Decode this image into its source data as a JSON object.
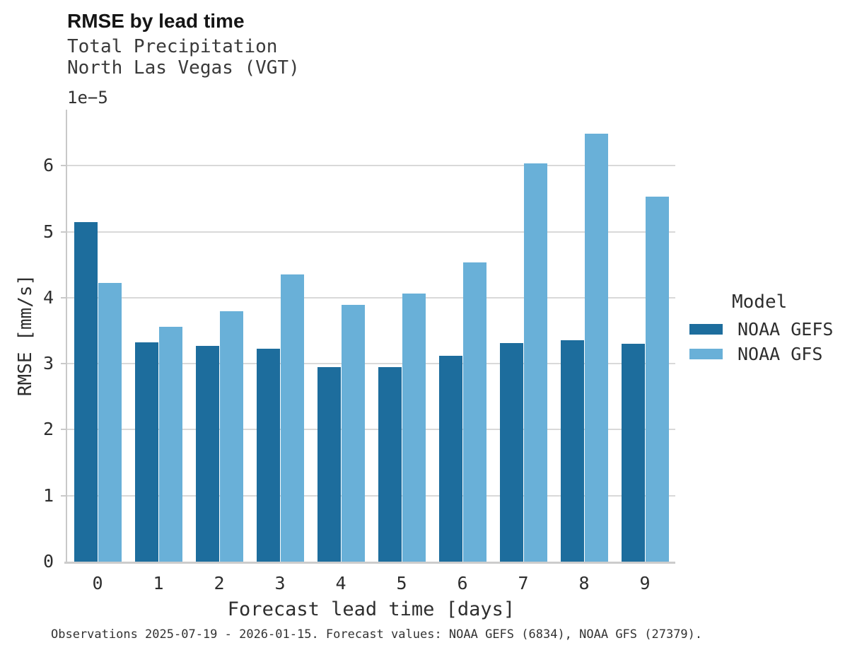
{
  "header": {
    "title": "RMSE by lead time",
    "subtitle_line1": "Total Precipitation",
    "subtitle_line2": "North Las Vegas (VGT)"
  },
  "chart_data": {
    "type": "bar",
    "title": "RMSE by lead time",
    "subtitle": [
      "Total Precipitation",
      "North Las Vegas (VGT)"
    ],
    "categories": [
      "0",
      "1",
      "2",
      "3",
      "4",
      "5",
      "6",
      "7",
      "8",
      "9"
    ],
    "series": [
      {
        "name": "NOAA GEFS",
        "color": "#1d6d9d",
        "values": [
          5.15,
          3.32,
          3.27,
          3.23,
          2.95,
          2.95,
          3.12,
          3.31,
          3.36,
          3.3
        ]
      },
      {
        "name": "NOAA GFS",
        "color": "#69b0d8",
        "values": [
          4.22,
          3.56,
          3.79,
          4.35,
          3.89,
          4.06,
          4.53,
          6.04,
          6.49,
          5.53
        ]
      }
    ],
    "value_scale_note": "values are in units of 1e-5",
    "offset_label": "1e−5",
    "xlabel": "Forecast lead time [days]",
    "ylabel": "RMSE [mm/s]",
    "ylim": [
      0,
      6.85
    ],
    "yticks": [
      0,
      1,
      2,
      3,
      4,
      5,
      6
    ],
    "grid": "horizontal",
    "legend_title": "Model",
    "legend_position": "right of plot"
  },
  "caption": "Observations 2025-07-19 - 2026-01-15. Forecast values: NOAA GEFS (6834), NOAA GFS (27379)."
}
